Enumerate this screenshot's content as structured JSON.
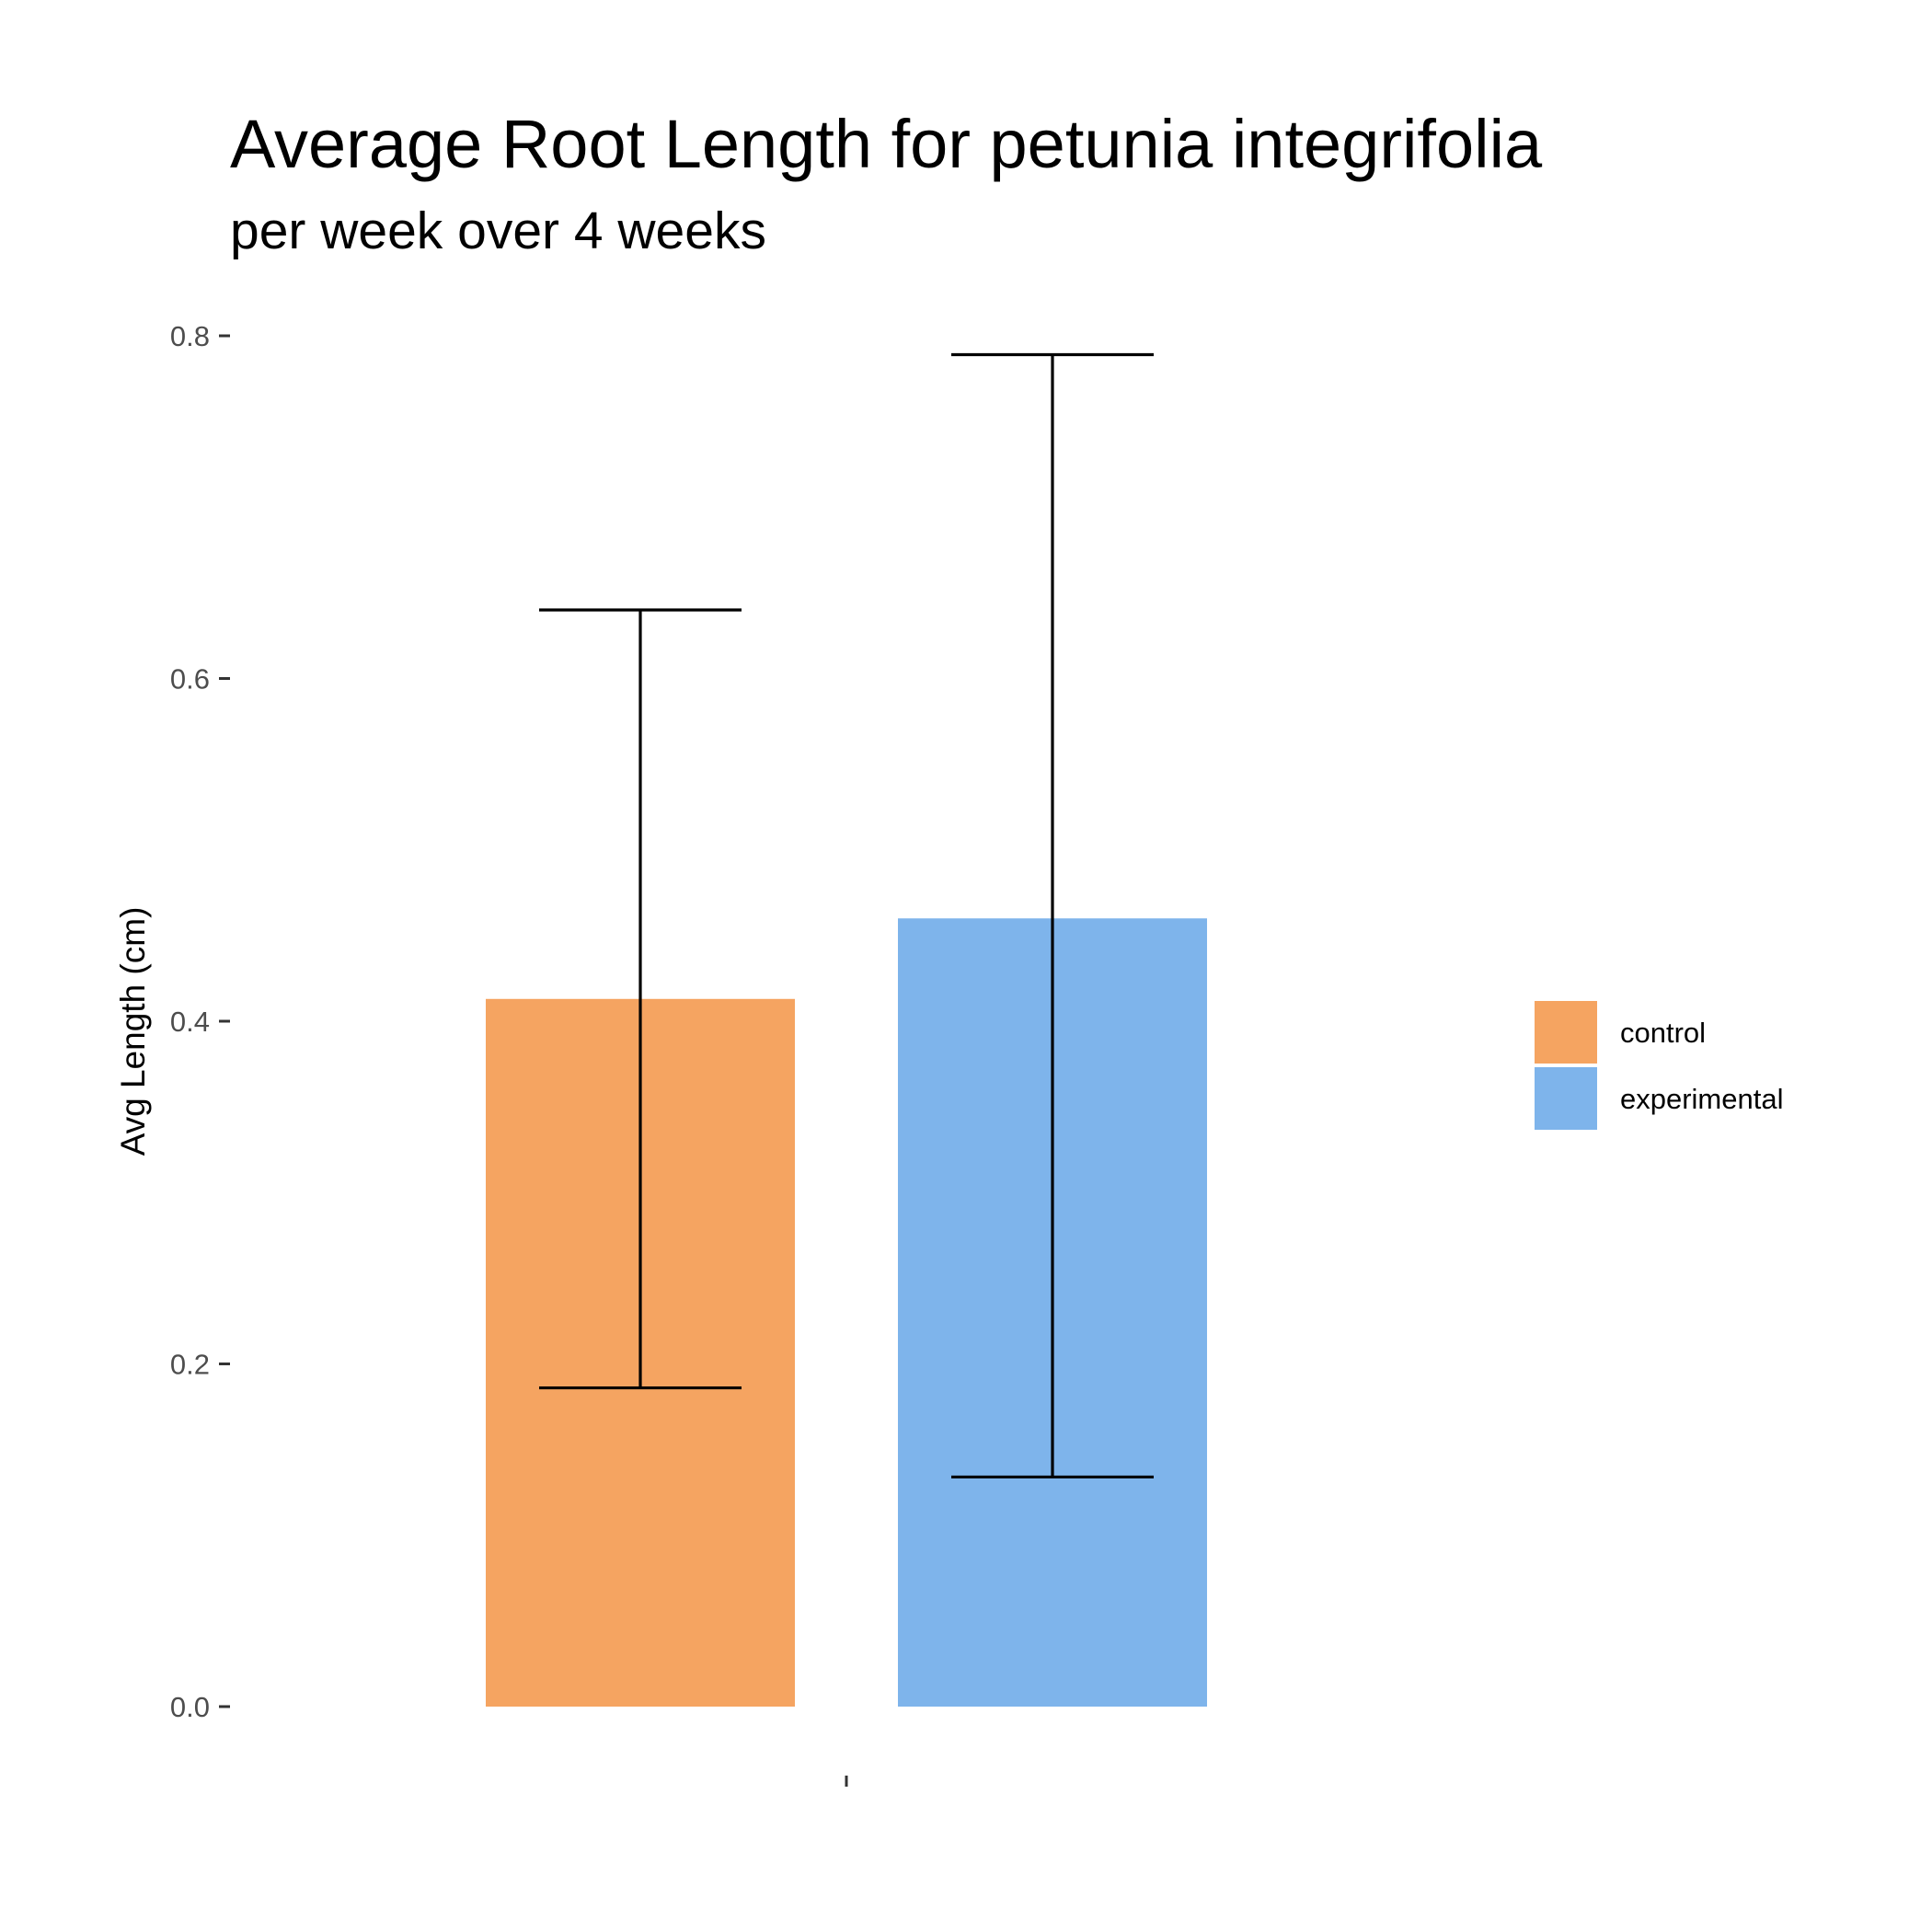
{
  "chart_data": {
    "type": "bar",
    "title": "Average Root Length for petunia integrifolia",
    "subtitle": "per week over 4 weeks",
    "xlabel": "",
    "ylabel": "Avg Length (cm)",
    "ylim": [
      0,
      0.8
    ],
    "yticks": [
      "0.0",
      "0.2",
      "0.4",
      "0.6",
      "0.8"
    ],
    "categories": [
      ""
    ],
    "grid": false,
    "legend_position": "right",
    "series": [
      {
        "name": "control",
        "color": "#F5A461",
        "values": [
          0.413
        ],
        "error_low": [
          0.186
        ],
        "error_high": [
          0.64
        ]
      },
      {
        "name": "experimental",
        "color": "#7EB4EB",
        "values": [
          0.46
        ],
        "error_low": [
          0.134
        ],
        "error_high": [
          0.789
        ]
      }
    ]
  }
}
